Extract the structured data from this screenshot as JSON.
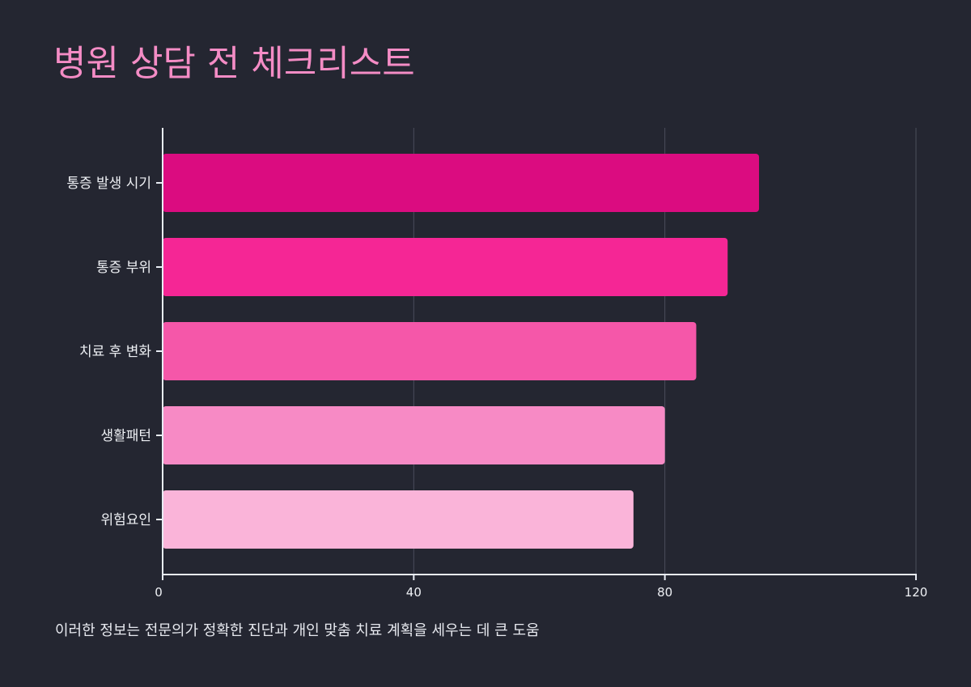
{
  "title": "병원 상담 전 체크리스트",
  "note": "이러한 정보는 전문의가 정확한 진단과 개인 맞춤 치료 계획을 세우는 데 큰 도움",
  "chart_data": {
    "type": "bar",
    "orientation": "horizontal",
    "categories": [
      "통증 발생 시기",
      "통증 부위",
      "치료 후 변화",
      "생활패턴",
      "위험요인"
    ],
    "values": [
      95,
      90,
      85,
      80,
      75
    ],
    "bar_colors": [
      "#db0c80",
      "#f52695",
      "#f557a9",
      "#f78ac5",
      "#fab4d9"
    ],
    "xlim": [
      0,
      120
    ],
    "xticks": [
      0,
      40,
      80,
      120
    ],
    "xtick_labels": [
      "0",
      "40",
      "80",
      "120"
    ],
    "grid": true,
    "title_color": "#f48cc5",
    "background": "#242631"
  }
}
